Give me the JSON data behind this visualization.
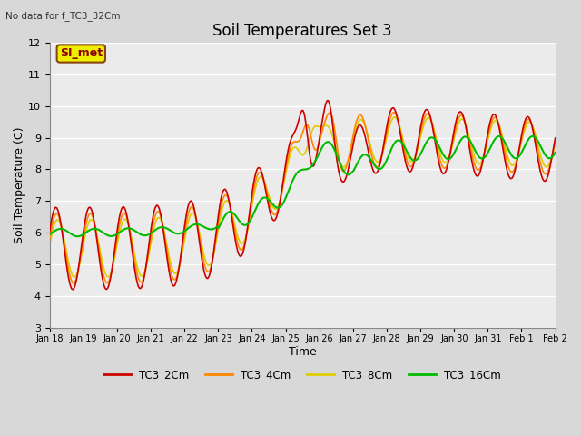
{
  "title": "Soil Temperatures Set 3",
  "subtitle": "No data for f_TC3_32Cm",
  "xlabel": "Time",
  "ylabel": "Soil Temperature (C)",
  "ylim": [
    3.0,
    12.0
  ],
  "yticks": [
    3.0,
    4.0,
    5.0,
    6.0,
    7.0,
    8.0,
    9.0,
    10.0,
    11.0,
    12.0
  ],
  "colors": {
    "TC3_2Cm": "#cc0000",
    "TC3_4Cm": "#ff8800",
    "TC3_8Cm": "#ddcc00",
    "TC3_16Cm": "#00bb00"
  },
  "line_widths": {
    "TC3_2Cm": 1.2,
    "TC3_4Cm": 1.2,
    "TC3_8Cm": 1.2,
    "TC3_16Cm": 1.5
  },
  "bg_color": "#d8d8d8",
  "plot_bg_color": "#ebebeb",
  "grid_color": "#ffffff",
  "annotation_text": "SI_met",
  "annotation_box_color": "#eeee00",
  "annotation_box_edge": "#8b4513",
  "xtick_labels": [
    "Jan 18",
    "Jan 19",
    "Jan 20",
    "Jan 21",
    "Jan 22",
    "Jan 23",
    "Jan 24",
    "Jan 25",
    "Jan 26",
    "Jan 27",
    "Jan 28",
    "Jan 29",
    "Jan 30",
    "Jan 31",
    "Feb 1",
    "Feb 2"
  ],
  "num_points": 480
}
